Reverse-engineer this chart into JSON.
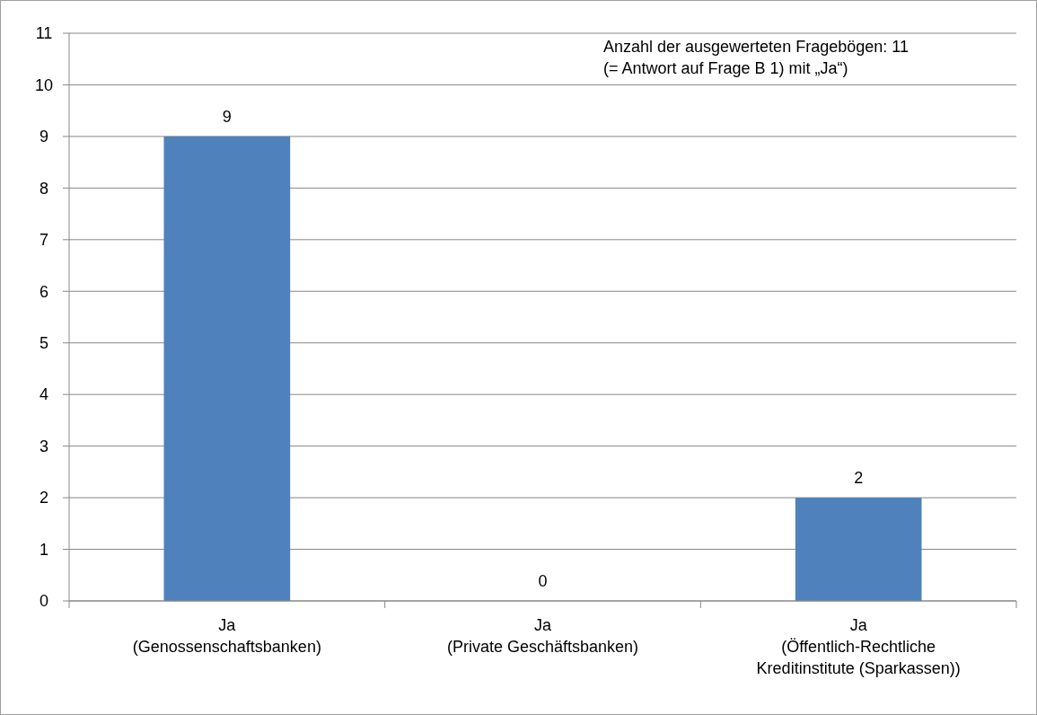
{
  "chart_data": {
    "type": "bar",
    "categories": [
      "Ja\n(Genossenschaftsbanken)",
      "Ja\n(Private Geschäftsbanken)",
      "Ja\n(Öffentlich-Rechtliche\nKreditinstitute (Sparkassen))"
    ],
    "values": [
      9,
      0,
      2
    ],
    "color": "#4f81bd",
    "ylim": [
      0,
      11
    ],
    "yticks": [
      0,
      1,
      2,
      3,
      4,
      5,
      6,
      7,
      8,
      9,
      10,
      11
    ],
    "grid": "y",
    "data_labels": true,
    "annotations": [
      "Anzahl der ausgewerteten Fragebögen: 11\n(= Antwort auf Frage B 1) mit „Ja“)"
    ]
  }
}
